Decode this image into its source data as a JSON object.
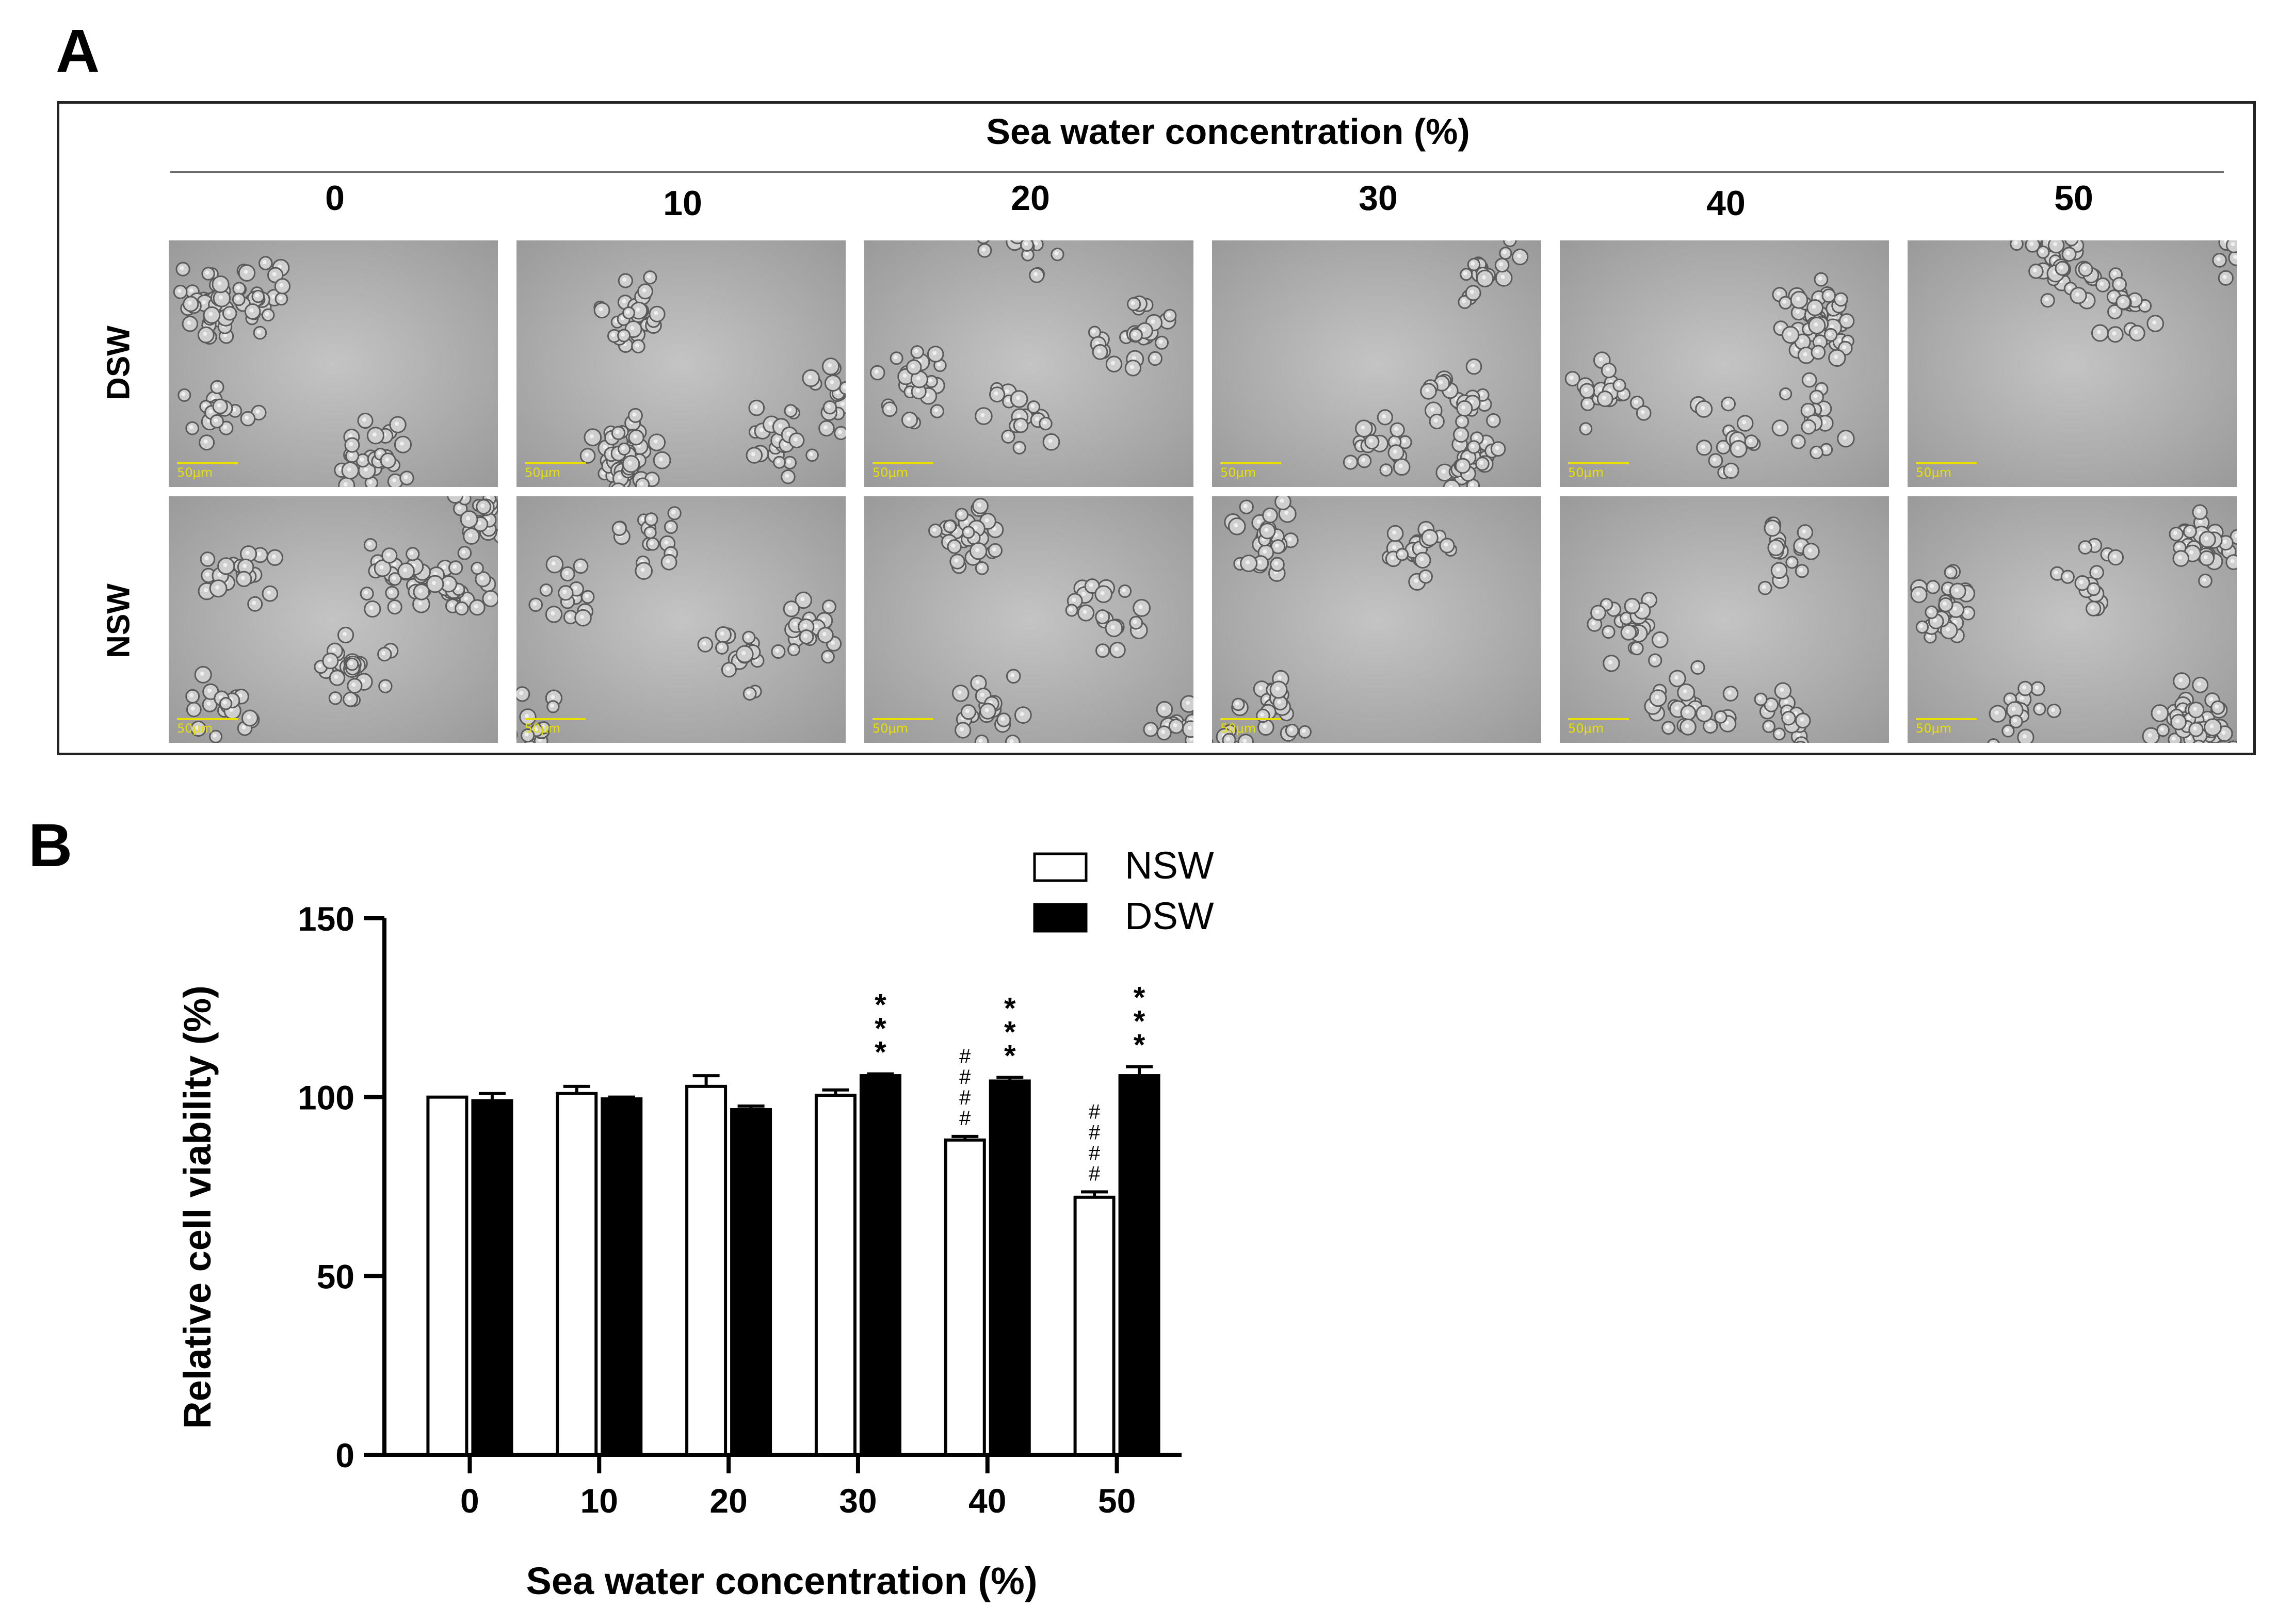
{
  "panel_a": {
    "letter": "A",
    "header": "Sea water concentration (%)",
    "concentrations": [
      "0",
      "10",
      "20",
      "30",
      "40",
      "50"
    ],
    "rows": [
      {
        "label": "DSW",
        "scale_label": "50μm"
      },
      {
        "label": "NSW",
        "scale_label": "50μm"
      }
    ]
  },
  "panel_b": {
    "letter": "B"
  },
  "chart_data": {
    "type": "bar",
    "categories": [
      "0",
      "10",
      "20",
      "30",
      "40",
      "50"
    ],
    "series": [
      {
        "name": "NSW",
        "values": [
          100,
          101,
          103,
          100.5,
          88,
          72
        ],
        "errors": [
          0,
          2,
          3,
          1.5,
          1,
          1.5
        ],
        "color": "#ffffff"
      },
      {
        "name": "DSW",
        "values": [
          99,
          99.5,
          96.5,
          106,
          104.5,
          106
        ],
        "errors": [
          2,
          0.5,
          1,
          0.5,
          1,
          2.5
        ],
        "color": "#000000"
      }
    ],
    "annotations": [
      {
        "category": "30",
        "series": "DSW",
        "text": "***"
      },
      {
        "category": "40",
        "series": "NSW",
        "text": "####"
      },
      {
        "category": "40",
        "series": "DSW",
        "text": "***"
      },
      {
        "category": "50",
        "series": "NSW",
        "text": "####"
      },
      {
        "category": "50",
        "series": "DSW",
        "text": "***"
      }
    ],
    "xlabel": "Sea water concentration (%)",
    "ylabel": "Relative cell viability (%)",
    "ylim": [
      0,
      150
    ],
    "yticks": [
      "0",
      "50",
      "100",
      "150"
    ],
    "legend_position": "top-center",
    "grid": false
  }
}
